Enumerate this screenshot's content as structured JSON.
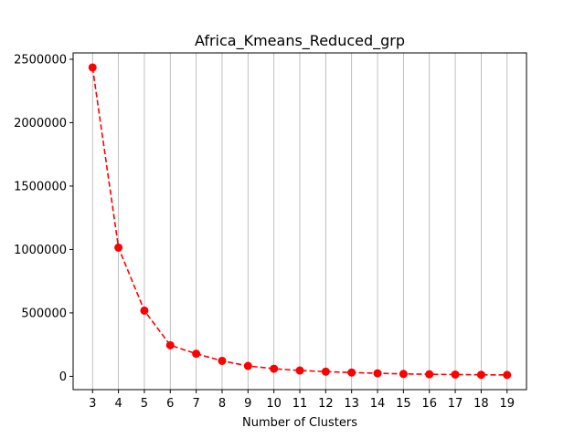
{
  "chart_data": {
    "type": "line",
    "title": "Africa_Kmeans_Reduced_grp",
    "xlabel": "Number of Clusters",
    "ylabel": "",
    "x": [
      3,
      4,
      5,
      6,
      7,
      8,
      9,
      10,
      11,
      12,
      13,
      14,
      15,
      16,
      17,
      18,
      19
    ],
    "series": [
      {
        "values": [
          2435000,
          1015000,
          518000,
          245000,
          178000,
          122000,
          82000,
          60000,
          46000,
          37000,
          30000,
          24000,
          19000,
          16000,
          14000,
          12000,
          11000
        ],
        "color": "#ff0000",
        "line_style": "dashed",
        "marker": "circle"
      }
    ],
    "yticks": [
      0,
      500000,
      1000000,
      1500000,
      2000000,
      2500000
    ],
    "xlim": [
      2.25,
      19.75
    ],
    "ylim": [
      -105000,
      2550000
    ],
    "grid": "x-only",
    "legend": "none"
  }
}
